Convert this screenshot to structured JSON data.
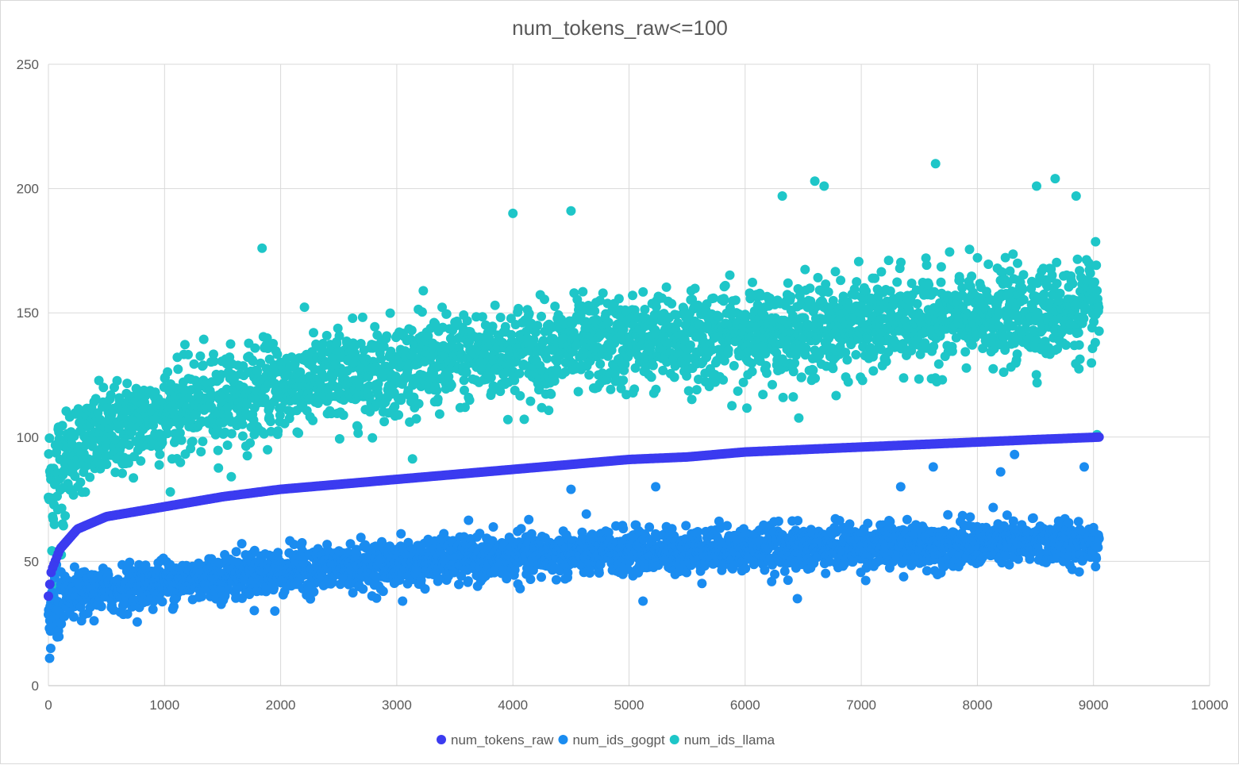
{
  "chart_data": {
    "type": "scatter",
    "title": "num_tokens_raw<=100",
    "xlabel": "",
    "ylabel": "",
    "xlim": [
      0,
      10000
    ],
    "ylim": [
      0,
      250
    ],
    "xticks": [
      "0",
      "1000",
      "2000",
      "3000",
      "4000",
      "5000",
      "6000",
      "7000",
      "8000",
      "9000",
      "10000"
    ],
    "yticks": [
      "0",
      "50",
      "100",
      "150",
      "200",
      "250"
    ],
    "grid": true,
    "legend_position": "bottom",
    "n_points": 9050,
    "series": [
      {
        "name": "num_tokens_raw",
        "color": "#3b3bf0",
        "description": "sorted, monotonically increasing curve",
        "anchors": [
          [
            0,
            36
          ],
          [
            25,
            46
          ],
          [
            100,
            55
          ],
          [
            250,
            63
          ],
          [
            500,
            68
          ],
          [
            1000,
            72
          ],
          [
            1500,
            76
          ],
          [
            2000,
            79
          ],
          [
            2500,
            81
          ],
          [
            3000,
            83
          ],
          [
            3500,
            85
          ],
          [
            4000,
            87
          ],
          [
            4500,
            89
          ],
          [
            5000,
            91
          ],
          [
            5500,
            92
          ],
          [
            6000,
            94
          ],
          [
            6500,
            95
          ],
          [
            7000,
            96
          ],
          [
            7500,
            97
          ],
          [
            8000,
            98
          ],
          [
            8500,
            99
          ],
          [
            9050,
            100
          ]
        ]
      },
      {
        "name": "num_ids_gogpt",
        "color": "#1a8cf0",
        "description": "scatter band",
        "mean_anchors": [
          [
            0,
            28
          ],
          [
            200,
            36
          ],
          [
            1000,
            42
          ],
          [
            2000,
            46
          ],
          [
            3000,
            49
          ],
          [
            4000,
            52
          ],
          [
            5000,
            54
          ],
          [
            6000,
            55
          ],
          [
            7000,
            56
          ],
          [
            8000,
            57
          ],
          [
            9050,
            58
          ]
        ],
        "spread": 8,
        "outliers": [
          [
            10,
            11
          ],
          [
            20,
            15
          ],
          [
            1950,
            30
          ],
          [
            3050,
            34
          ],
          [
            5120,
            34
          ],
          [
            6450,
            35
          ],
          [
            8320,
            93
          ],
          [
            7620,
            88
          ],
          [
            8920,
            88
          ],
          [
            8200,
            86
          ],
          [
            4500,
            79
          ],
          [
            5230,
            80
          ],
          [
            7340,
            80
          ]
        ]
      },
      {
        "name": "num_ids_llama",
        "color": "#1ec6c8",
        "description": "scatter band",
        "mean_anchors": [
          [
            0,
            80
          ],
          [
            200,
            95
          ],
          [
            1000,
            110
          ],
          [
            2000,
            120
          ],
          [
            3000,
            128
          ],
          [
            4000,
            134
          ],
          [
            5000,
            138
          ],
          [
            6000,
            141
          ],
          [
            7000,
            145
          ],
          [
            8000,
            148
          ],
          [
            9050,
            152
          ]
        ],
        "spread": 17,
        "outliers": [
          [
            7640,
            210
          ],
          [
            8670,
            204
          ],
          [
            6600,
            203
          ],
          [
            8510,
            201
          ],
          [
            6680,
            201
          ],
          [
            4500,
            191
          ],
          [
            4000,
            190
          ],
          [
            1840,
            176
          ],
          [
            20,
            29
          ],
          [
            40,
            40
          ],
          [
            50,
            45
          ],
          [
            9030,
            101
          ],
          [
            6320,
            197
          ],
          [
            8850,
            197
          ]
        ]
      }
    ]
  }
}
